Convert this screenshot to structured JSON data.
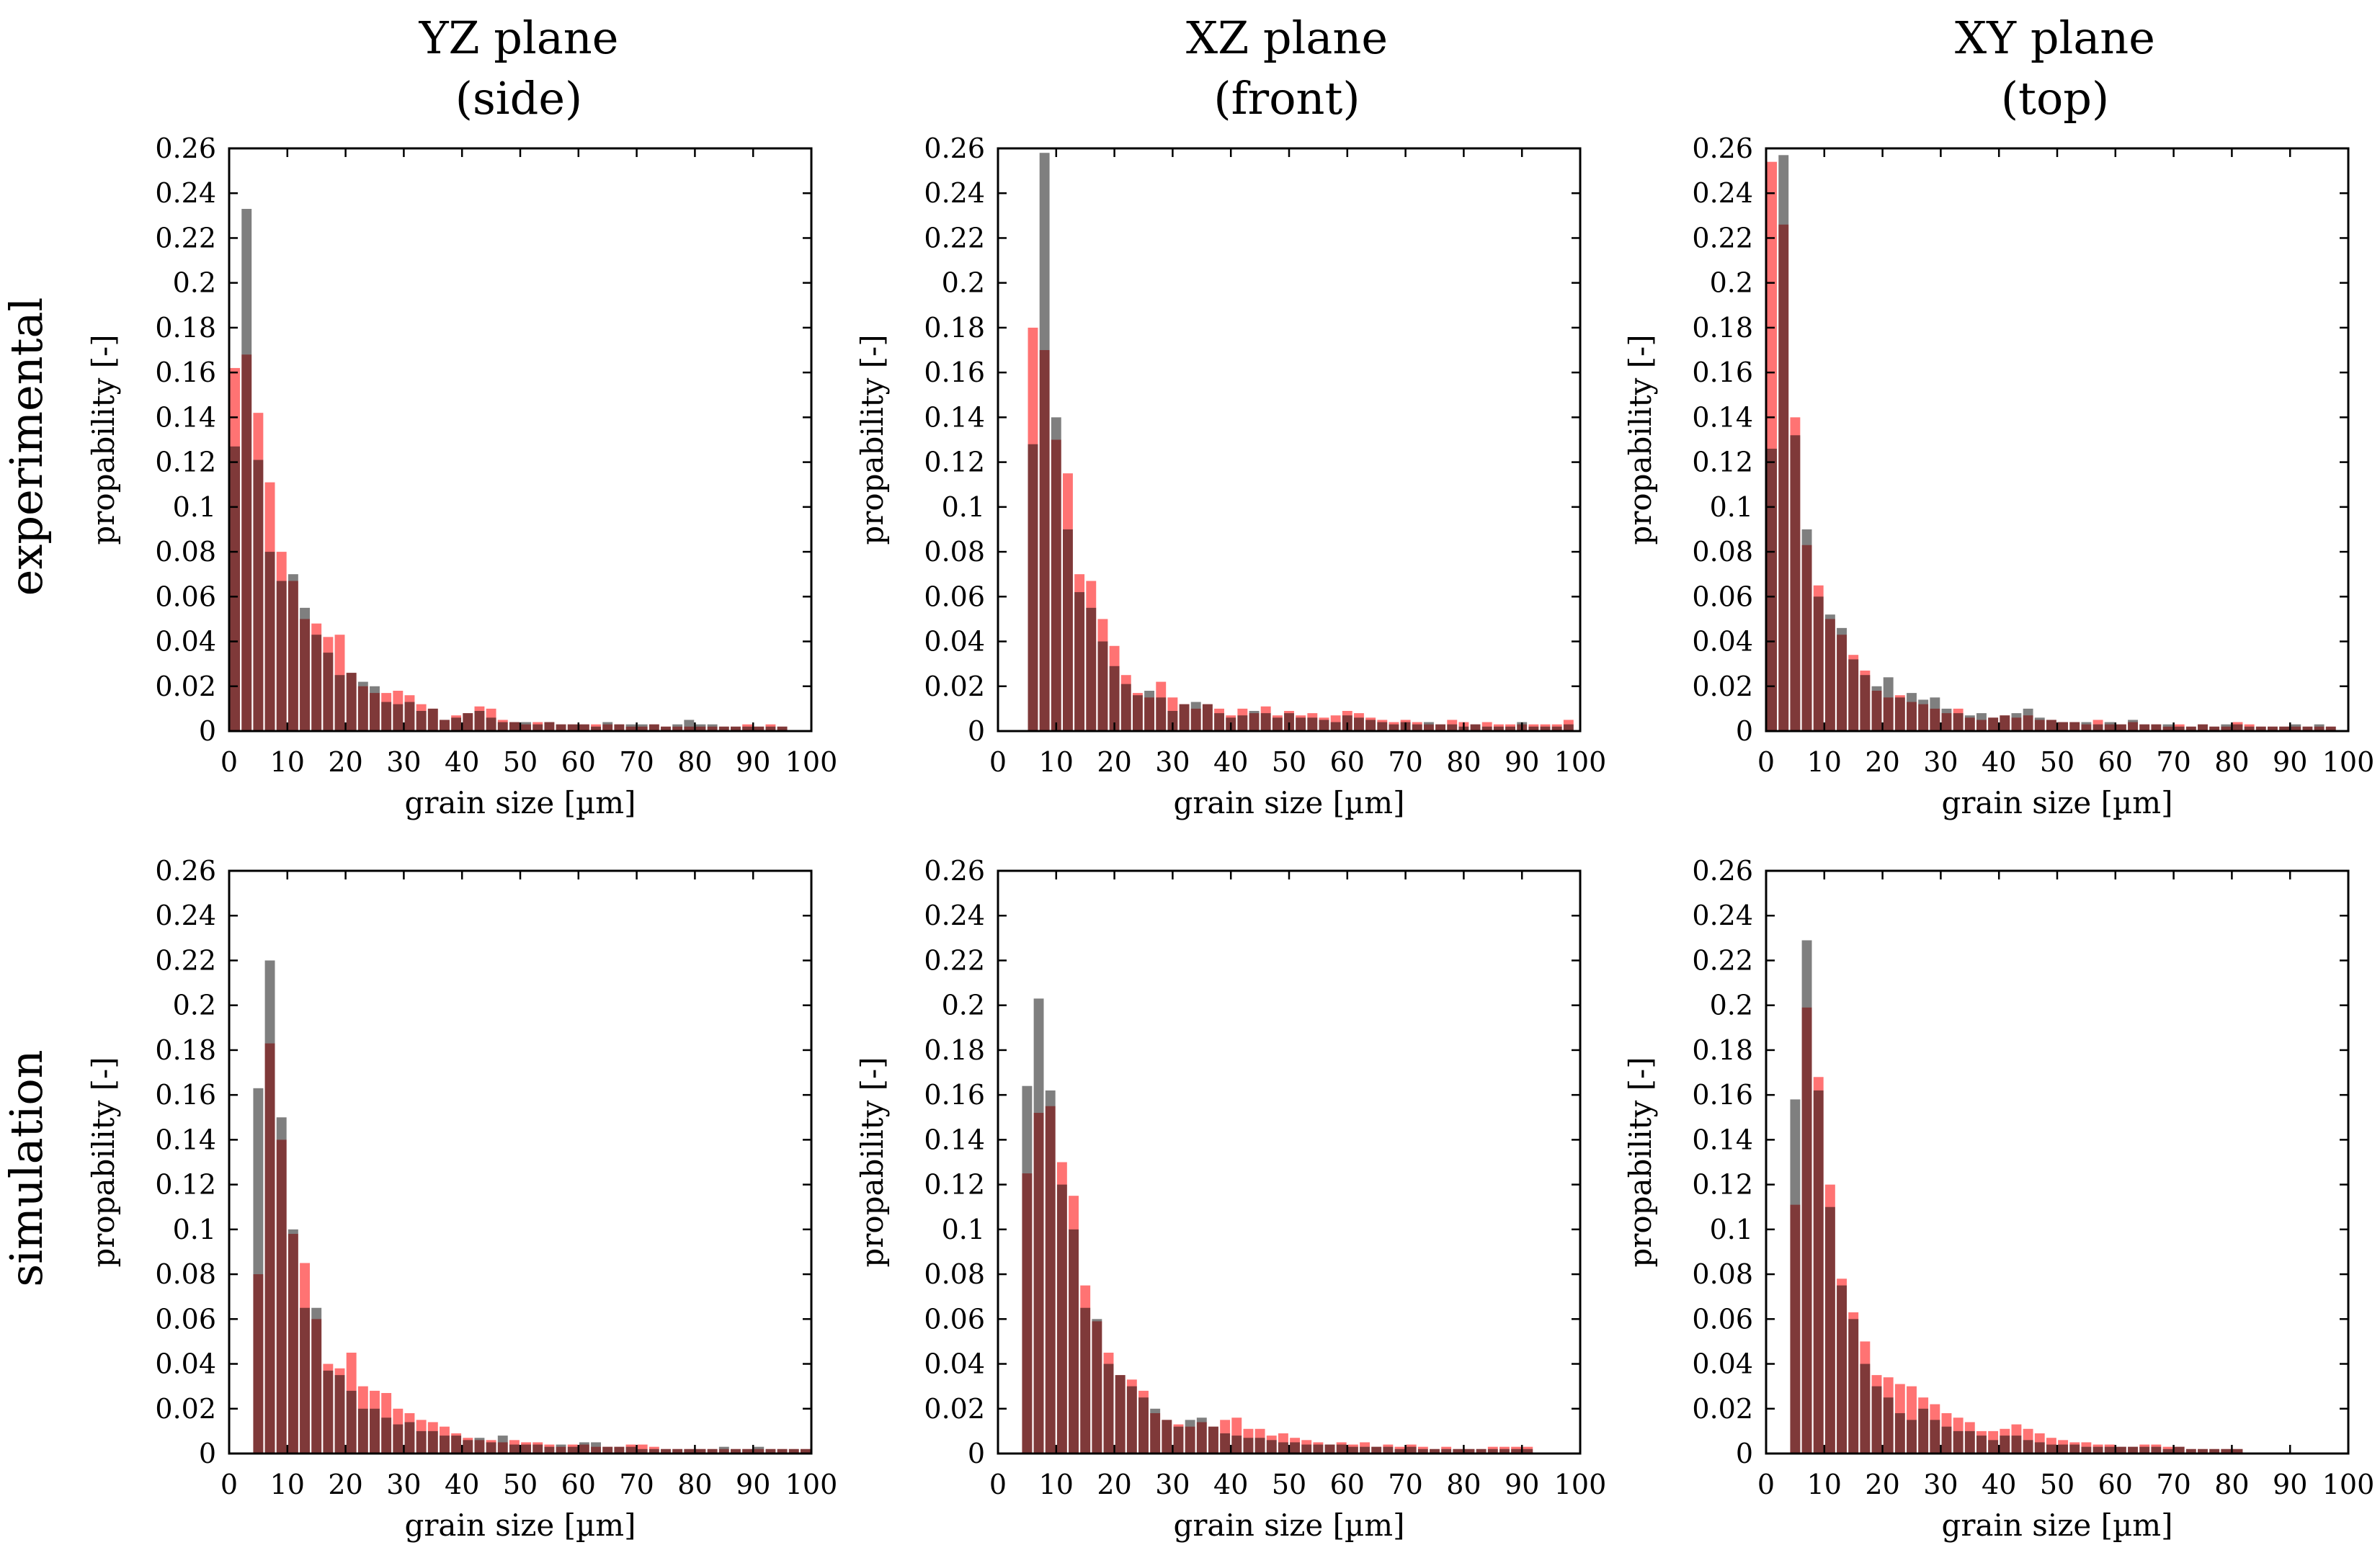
{
  "figure": {
    "column_titles": [
      {
        "line1": "YZ plane",
        "line2": "(side)"
      },
      {
        "line1": "XZ plane",
        "line2": "(front)"
      },
      {
        "line1": "XY plane",
        "line2": "(top)"
      }
    ],
    "row_titles": [
      "experimental",
      "simulation"
    ],
    "colors": {
      "series_a": "#ff0000",
      "series_b": "#000000",
      "overlap": "#7f1f1f"
    }
  },
  "chart_data": [
    {
      "type": "bar",
      "title": "YZ plane (side) - experimental",
      "xlabel": "grain size [µm]",
      "ylabel": "propability [-]",
      "xlim": [
        0,
        100
      ],
      "ylim": [
        0,
        0.26
      ],
      "bin_width": 2,
      "xticks": [
        0,
        10,
        20,
        30,
        40,
        50,
        60,
        70,
        80,
        90,
        100
      ],
      "yticks": [
        0,
        0.02,
        0.04,
        0.06,
        0.08,
        0.1,
        0.12,
        0.14,
        0.16,
        0.18,
        0.2,
        0.22,
        0.24,
        0.26
      ],
      "x": [
        1,
        3,
        5,
        7,
        9,
        11,
        13,
        15,
        17,
        19,
        21,
        23,
        25,
        27,
        29,
        31,
        33,
        35,
        37,
        39,
        41,
        43,
        45,
        47,
        49,
        51,
        53,
        55,
        57,
        59,
        61,
        63,
        65,
        67,
        69,
        71,
        73,
        75,
        77,
        79,
        81,
        83,
        85,
        87,
        89,
        91,
        93,
        95
      ],
      "series": [
        {
          "name": "red",
          "color": "#ff0000",
          "values": [
            0.162,
            0.168,
            0.142,
            0.111,
            0.08,
            0.067,
            0.05,
            0.048,
            0.042,
            0.043,
            0.026,
            0.02,
            0.017,
            0.017,
            0.018,
            0.016,
            0.012,
            0.01,
            0.005,
            0.007,
            0.008,
            0.011,
            0.01,
            0.005,
            0.004,
            0.003,
            0.004,
            0.004,
            0.003,
            0.003,
            0.003,
            0.003,
            0.003,
            0.003,
            0.002,
            0.002,
            0.003,
            0.002,
            0.002,
            0.002,
            0.002,
            0.002,
            0.002,
            0.002,
            0.003,
            0.002,
            0.003,
            0.002
          ]
        },
        {
          "name": "gray",
          "color": "#000000",
          "values": [
            0.127,
            0.233,
            0.121,
            0.08,
            0.067,
            0.07,
            0.055,
            0.043,
            0.035,
            0.025,
            0.026,
            0.022,
            0.02,
            0.013,
            0.012,
            0.013,
            0.009,
            0.01,
            0.005,
            0.006,
            0.008,
            0.009,
            0.006,
            0.004,
            0.004,
            0.004,
            0.003,
            0.004,
            0.003,
            0.003,
            0.003,
            0.002,
            0.004,
            0.003,
            0.003,
            0.003,
            0.003,
            0.002,
            0.003,
            0.005,
            0.003,
            0.003,
            0.002,
            0.002,
            0.002,
            0.002,
            0.002,
            0.002
          ]
        }
      ]
    },
    {
      "type": "bar",
      "title": "XZ plane (front) - experimental",
      "xlabel": "grain size [µm]",
      "ylabel": "propability [-]",
      "xlim": [
        0,
        100
      ],
      "ylim": [
        0,
        0.26
      ],
      "bin_width": 2,
      "xticks": [
        0,
        10,
        20,
        30,
        40,
        50,
        60,
        70,
        80,
        90,
        100
      ],
      "yticks": [
        0,
        0.02,
        0.04,
        0.06,
        0.08,
        0.1,
        0.12,
        0.14,
        0.16,
        0.18,
        0.2,
        0.22,
        0.24,
        0.26
      ],
      "x": [
        6,
        8,
        10,
        12,
        14,
        16,
        18,
        20,
        22,
        24,
        26,
        28,
        30,
        32,
        34,
        36,
        38,
        40,
        42,
        44,
        46,
        48,
        50,
        52,
        54,
        56,
        58,
        60,
        62,
        64,
        66,
        68,
        70,
        72,
        74,
        76,
        78,
        80,
        82,
        84,
        86,
        88,
        90,
        92,
        94,
        96,
        98
      ],
      "series": [
        {
          "name": "red",
          "color": "#ff0000",
          "values": [
            0.18,
            0.17,
            0.13,
            0.115,
            0.07,
            0.067,
            0.05,
            0.038,
            0.025,
            0.017,
            0.015,
            0.022,
            0.015,
            0.012,
            0.01,
            0.012,
            0.01,
            0.007,
            0.01,
            0.008,
            0.011,
            0.007,
            0.009,
            0.007,
            0.008,
            0.006,
            0.007,
            0.009,
            0.008,
            0.006,
            0.005,
            0.004,
            0.005,
            0.004,
            0.003,
            0.003,
            0.005,
            0.004,
            0.003,
            0.004,
            0.003,
            0.003,
            0.003,
            0.003,
            0.003,
            0.003,
            0.005
          ]
        },
        {
          "name": "gray",
          "color": "#000000",
          "values": [
            0.128,
            0.258,
            0.14,
            0.09,
            0.062,
            0.055,
            0.04,
            0.029,
            0.021,
            0.016,
            0.018,
            0.015,
            0.009,
            0.012,
            0.013,
            0.012,
            0.008,
            0.006,
            0.007,
            0.009,
            0.008,
            0.006,
            0.008,
            0.006,
            0.006,
            0.005,
            0.004,
            0.007,
            0.006,
            0.005,
            0.004,
            0.003,
            0.004,
            0.003,
            0.004,
            0.003,
            0.003,
            0.002,
            0.003,
            0.002,
            0.002,
            0.002,
            0.004,
            0.002,
            0.002,
            0.002,
            0.003
          ]
        }
      ]
    },
    {
      "type": "bar",
      "title": "XY plane (top) - experimental",
      "xlabel": "grain size [µm]",
      "ylabel": "propability [-]",
      "xlim": [
        0,
        100
      ],
      "ylim": [
        0,
        0.26
      ],
      "bin_width": 2,
      "xticks": [
        0,
        10,
        20,
        30,
        40,
        50,
        60,
        70,
        80,
        90,
        100
      ],
      "yticks": [
        0,
        0.02,
        0.04,
        0.06,
        0.08,
        0.1,
        0.12,
        0.14,
        0.16,
        0.18,
        0.2,
        0.22,
        0.24,
        0.26
      ],
      "x": [
        1,
        3,
        5,
        7,
        9,
        11,
        13,
        15,
        17,
        19,
        21,
        23,
        25,
        27,
        29,
        31,
        33,
        35,
        37,
        39,
        41,
        43,
        45,
        47,
        49,
        51,
        53,
        55,
        57,
        59,
        61,
        63,
        65,
        67,
        69,
        71,
        73,
        75,
        77,
        79,
        81,
        83,
        85,
        87,
        89,
        91,
        93,
        95,
        97
      ],
      "series": [
        {
          "name": "red",
          "color": "#ff0000",
          "values": [
            0.254,
            0.226,
            0.14,
            0.083,
            0.065,
            0.05,
            0.043,
            0.034,
            0.027,
            0.018,
            0.015,
            0.016,
            0.013,
            0.012,
            0.01,
            0.008,
            0.01,
            0.006,
            0.005,
            0.006,
            0.007,
            0.006,
            0.007,
            0.005,
            0.005,
            0.004,
            0.004,
            0.003,
            0.005,
            0.003,
            0.003,
            0.004,
            0.003,
            0.003,
            0.002,
            0.003,
            0.002,
            0.003,
            0.002,
            0.002,
            0.004,
            0.003,
            0.002,
            0.002,
            0.002,
            0.002,
            0.002,
            0.002,
            0.002
          ]
        },
        {
          "name": "gray",
          "color": "#000000",
          "values": [
            0.126,
            0.257,
            0.132,
            0.09,
            0.06,
            0.052,
            0.046,
            0.032,
            0.025,
            0.02,
            0.024,
            0.015,
            0.017,
            0.014,
            0.015,
            0.01,
            0.008,
            0.007,
            0.008,
            0.006,
            0.007,
            0.008,
            0.01,
            0.006,
            0.005,
            0.004,
            0.004,
            0.004,
            0.003,
            0.004,
            0.003,
            0.005,
            0.003,
            0.003,
            0.003,
            0.002,
            0.002,
            0.003,
            0.002,
            0.003,
            0.003,
            0.002,
            0.002,
            0.002,
            0.002,
            0.003,
            0.002,
            0.003,
            0.002
          ]
        }
      ]
    },
    {
      "type": "bar",
      "title": "YZ plane (side) - simulation",
      "xlabel": "grain size [µm]",
      "ylabel": "propability [-]",
      "xlim": [
        0,
        100
      ],
      "ylim": [
        0,
        0.26
      ],
      "bin_width": 2,
      "xticks": [
        0,
        10,
        20,
        30,
        40,
        50,
        60,
        70,
        80,
        90,
        100
      ],
      "yticks": [
        0,
        0.02,
        0.04,
        0.06,
        0.08,
        0.1,
        0.12,
        0.14,
        0.16,
        0.18,
        0.2,
        0.22,
        0.24,
        0.26
      ],
      "x": [
        5,
        7,
        9,
        11,
        13,
        15,
        17,
        19,
        21,
        23,
        25,
        27,
        29,
        31,
        33,
        35,
        37,
        39,
        41,
        43,
        45,
        47,
        49,
        51,
        53,
        55,
        57,
        59,
        61,
        63,
        65,
        67,
        69,
        71,
        73,
        75,
        77,
        79,
        81,
        83,
        85,
        87,
        89,
        91,
        93,
        95,
        97,
        99
      ],
      "series": [
        {
          "name": "red",
          "color": "#ff0000",
          "values": [
            0.08,
            0.183,
            0.14,
            0.098,
            0.085,
            0.06,
            0.04,
            0.038,
            0.045,
            0.03,
            0.028,
            0.027,
            0.02,
            0.018,
            0.015,
            0.014,
            0.012,
            0.009,
            0.007,
            0.006,
            0.006,
            0.005,
            0.006,
            0.005,
            0.005,
            0.004,
            0.003,
            0.004,
            0.004,
            0.003,
            0.003,
            0.003,
            0.004,
            0.004,
            0.003,
            0.002,
            0.002,
            0.002,
            0.002,
            0.002,
            0.002,
            0.002,
            0.002,
            0.002,
            0.002,
            0.002,
            0.002,
            0.002
          ]
        },
        {
          "name": "gray",
          "color": "#000000",
          "values": [
            0.163,
            0.22,
            0.15,
            0.1,
            0.065,
            0.065,
            0.037,
            0.035,
            0.028,
            0.02,
            0.02,
            0.016,
            0.013,
            0.014,
            0.01,
            0.01,
            0.008,
            0.008,
            0.006,
            0.007,
            0.005,
            0.008,
            0.004,
            0.004,
            0.004,
            0.003,
            0.004,
            0.003,
            0.005,
            0.005,
            0.003,
            0.003,
            0.003,
            0.002,
            0.002,
            0.002,
            0.002,
            0.002,
            0.002,
            0.002,
            0.003,
            0.002,
            0.002,
            0.003,
            0.002,
            0.002,
            0.002,
            0.002
          ]
        }
      ]
    },
    {
      "type": "bar",
      "title": "XZ plane (front) - simulation",
      "xlabel": "grain size [µm]",
      "ylabel": "propability [-]",
      "xlim": [
        0,
        100
      ],
      "ylim": [
        0,
        0.26
      ],
      "bin_width": 2,
      "xticks": [
        0,
        10,
        20,
        30,
        40,
        50,
        60,
        70,
        80,
        90,
        100
      ],
      "yticks": [
        0,
        0.02,
        0.04,
        0.06,
        0.08,
        0.1,
        0.12,
        0.14,
        0.16,
        0.18,
        0.2,
        0.22,
        0.24,
        0.26
      ],
      "x": [
        5,
        7,
        9,
        11,
        13,
        15,
        17,
        19,
        21,
        23,
        25,
        27,
        29,
        31,
        33,
        35,
        37,
        39,
        41,
        43,
        45,
        47,
        49,
        51,
        53,
        55,
        57,
        59,
        61,
        63,
        65,
        67,
        69,
        71,
        73,
        75,
        77,
        79,
        81,
        83,
        85,
        87,
        89,
        91
      ],
      "series": [
        {
          "name": "red",
          "color": "#ff0000",
          "values": [
            0.125,
            0.152,
            0.155,
            0.13,
            0.115,
            0.075,
            0.059,
            0.045,
            0.035,
            0.033,
            0.028,
            0.018,
            0.015,
            0.013,
            0.012,
            0.014,
            0.012,
            0.015,
            0.016,
            0.011,
            0.011,
            0.008,
            0.009,
            0.007,
            0.006,
            0.005,
            0.004,
            0.005,
            0.004,
            0.005,
            0.003,
            0.004,
            0.003,
            0.004,
            0.003,
            0.002,
            0.003,
            0.002,
            0.002,
            0.002,
            0.003,
            0.003,
            0.003,
            0.003
          ]
        },
        {
          "name": "gray",
          "color": "#000000",
          "values": [
            0.164,
            0.203,
            0.162,
            0.12,
            0.1,
            0.065,
            0.06,
            0.04,
            0.035,
            0.03,
            0.025,
            0.02,
            0.015,
            0.012,
            0.015,
            0.016,
            0.012,
            0.009,
            0.008,
            0.007,
            0.007,
            0.006,
            0.005,
            0.005,
            0.004,
            0.004,
            0.004,
            0.004,
            0.003,
            0.003,
            0.003,
            0.003,
            0.002,
            0.003,
            0.002,
            0.002,
            0.002,
            0.002,
            0.002,
            0.002,
            0.002,
            0.002,
            0.002,
            0.002
          ]
        }
      ]
    },
    {
      "type": "bar",
      "title": "XY plane (top) - simulation",
      "xlabel": "grain size [µm]",
      "ylabel": "propability [-]",
      "xlim": [
        0,
        100
      ],
      "ylim": [
        0,
        0.26
      ],
      "bin_width": 2,
      "xticks": [
        0,
        10,
        20,
        30,
        40,
        50,
        60,
        70,
        80,
        90,
        100
      ],
      "yticks": [
        0,
        0.02,
        0.04,
        0.06,
        0.08,
        0.1,
        0.12,
        0.14,
        0.16,
        0.18,
        0.2,
        0.22,
        0.24,
        0.26
      ],
      "x": [
        5,
        7,
        9,
        11,
        13,
        15,
        17,
        19,
        21,
        23,
        25,
        27,
        29,
        31,
        33,
        35,
        37,
        39,
        41,
        43,
        45,
        47,
        49,
        51,
        53,
        55,
        57,
        59,
        61,
        63,
        65,
        67,
        69,
        71,
        73,
        75,
        77,
        79,
        81
      ],
      "series": [
        {
          "name": "red",
          "color": "#ff0000",
          "values": [
            0.111,
            0.199,
            0.168,
            0.12,
            0.078,
            0.063,
            0.05,
            0.035,
            0.034,
            0.031,
            0.03,
            0.025,
            0.022,
            0.018,
            0.016,
            0.014,
            0.01,
            0.01,
            0.011,
            0.013,
            0.011,
            0.009,
            0.007,
            0.006,
            0.005,
            0.005,
            0.004,
            0.004,
            0.003,
            0.003,
            0.004,
            0.004,
            0.003,
            0.003,
            0.002,
            0.002,
            0.002,
            0.002,
            0.002
          ]
        },
        {
          "name": "gray",
          "color": "#000000",
          "values": [
            0.158,
            0.229,
            0.162,
            0.11,
            0.075,
            0.06,
            0.04,
            0.03,
            0.025,
            0.018,
            0.015,
            0.02,
            0.015,
            0.012,
            0.01,
            0.01,
            0.008,
            0.006,
            0.008,
            0.008,
            0.006,
            0.005,
            0.004,
            0.004,
            0.004,
            0.003,
            0.003,
            0.003,
            0.003,
            0.003,
            0.003,
            0.003,
            0.002,
            0.003,
            0.002,
            0.002,
            0.002,
            0.002,
            0.002
          ]
        }
      ]
    }
  ]
}
